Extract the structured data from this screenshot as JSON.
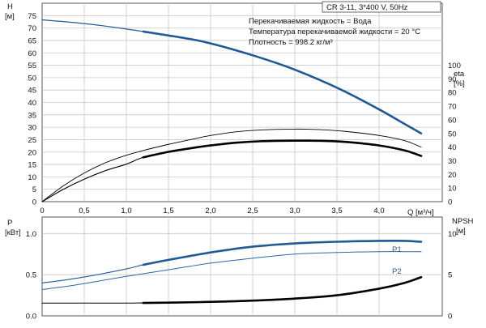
{
  "header": {
    "model_label": "CR 3-11, 3*400 V, 50Hz",
    "fluid_lines": [
      "Перекачиваемая жидкость = Вода",
      "Температура перекачиваемой жидкости = 20 °C",
      "Плотность = 998.2 кг/м³"
    ]
  },
  "colors": {
    "head_curve": "#1f5a96",
    "p1_curve": "#1f5a96",
    "p2_curve": "#2a68a8",
    "efficiency_curve": "#000000",
    "npsh_curve": "#000000",
    "grid": "#c8c8c8"
  },
  "chart_data": [
    {
      "type": "line",
      "x_axis": {
        "label": "Q [м³/ч]",
        "range": [
          0,
          4.75
        ],
        "ticks": [
          "0",
          "0,5",
          "1,0",
          "1,5",
          "2,0",
          "2,5",
          "3,0",
          "3,5",
          "4,0"
        ],
        "tick_values": [
          0,
          0.5,
          1.0,
          1.5,
          2.0,
          2.5,
          3.0,
          3.5,
          4.0
        ]
      },
      "y_axis_left": {
        "label_lines": [
          "H",
          "[м]"
        ],
        "range": [
          0,
          80
        ],
        "ticks": [
          "0",
          "5",
          "10",
          "15",
          "20",
          "25",
          "30",
          "35",
          "40",
          "45",
          "50",
          "55",
          "60",
          "65",
          "70",
          "75"
        ],
        "tick_values": [
          0,
          5,
          10,
          15,
          20,
          25,
          30,
          35,
          40,
          45,
          50,
          55,
          60,
          65,
          70,
          75
        ]
      },
      "y_axis_right": {
        "label_lines": [
          "eta",
          "[%]"
        ],
        "range": [
          0,
          145.45
        ],
        "ticks": [
          "0",
          "10",
          "20",
          "30",
          "40",
          "50",
          "60",
          "70",
          "80",
          "90",
          "100"
        ],
        "tick_values": [
          0,
          10,
          20,
          30,
          40,
          50,
          60,
          70,
          80,
          90,
          100
        ]
      },
      "grid": true,
      "series": [
        {
          "key": "head",
          "axis": "left",
          "x": [
            0,
            0.25,
            0.5,
            0.75,
            1.0,
            1.2,
            1.5,
            1.8,
            2.0,
            2.2,
            2.5,
            2.8,
            3.0,
            3.3,
            3.6,
            4.0,
            4.3,
            4.5
          ],
          "y": [
            73.3,
            72.6,
            71.8,
            70.8,
            69.6,
            68.6,
            67.0,
            65.3,
            63.8,
            62.0,
            59.0,
            55.7,
            53.2,
            49.0,
            44.3,
            37.2,
            31.4,
            27.5
          ],
          "bold_from_x": 1.2
        },
        {
          "key": "eta_thin",
          "axis": "right",
          "x": [
            0,
            0.25,
            0.5,
            0.75,
            1.0,
            1.2,
            1.5,
            1.8,
            2.0,
            2.3,
            2.6,
            3.0,
            3.3,
            3.6,
            4.0,
            4.3,
            4.5
          ],
          "y": [
            0,
            11.5,
            21.0,
            28.5,
            34.0,
            37.5,
            42.0,
            46.0,
            48.5,
            51.2,
            52.6,
            53.2,
            52.8,
            51.5,
            48.5,
            44.8,
            40.0
          ]
        },
        {
          "key": "eta_bold",
          "axis": "right",
          "x": [
            0,
            0.25,
            0.5,
            0.75,
            1.0,
            1.2,
            1.5,
            1.8,
            2.0,
            2.3,
            2.6,
            3.0,
            3.3,
            3.6,
            4.0,
            4.3,
            4.5
          ],
          "y": [
            0,
            9.0,
            16.5,
            22.7,
            27.5,
            32.5,
            36.5,
            39.5,
            41.2,
            43.2,
            44.3,
            44.7,
            44.6,
            43.8,
            41.2,
            37.6,
            33.5
          ],
          "bold_from_x": 1.2
        }
      ]
    },
    {
      "type": "line",
      "x_axis": {
        "range": [
          0,
          4.75
        ]
      },
      "y_axis_left": {
        "label_lines": [
          "P",
          "[кВт]"
        ],
        "range": [
          0,
          1.2
        ],
        "ticks": [
          "0.0",
          "0.5",
          "1.0"
        ],
        "tick_values": [
          0,
          0.5,
          1.0
        ]
      },
      "y_axis_right": {
        "label_lines": [
          "NPSH",
          "[м]"
        ],
        "range": [
          0,
          12
        ],
        "ticks": [
          "0",
          "5",
          "10"
        ],
        "tick_values": [
          0,
          5,
          10
        ]
      },
      "grid": true,
      "series": [
        {
          "name": "P1",
          "key": "p1",
          "axis": "left",
          "x": [
            0,
            0.3,
            0.6,
            1.0,
            1.2,
            1.5,
            2.0,
            2.5,
            3.0,
            3.5,
            4.0,
            4.3,
            4.5
          ],
          "y": [
            0.4,
            0.44,
            0.49,
            0.57,
            0.62,
            0.68,
            0.77,
            0.84,
            0.88,
            0.9,
            0.91,
            0.91,
            0.9
          ],
          "bold_from_x": 1.2
        },
        {
          "name": "P2",
          "key": "p2",
          "axis": "left",
          "x": [
            0,
            0.3,
            0.6,
            1.0,
            1.5,
            2.0,
            2.5,
            3.0,
            3.5,
            4.0,
            4.3,
            4.5
          ],
          "y": [
            0.32,
            0.36,
            0.41,
            0.48,
            0.56,
            0.64,
            0.7,
            0.75,
            0.77,
            0.78,
            0.78,
            0.78
          ]
        },
        {
          "key": "npsh",
          "axis": "right",
          "x": [
            0,
            0.5,
            1.0,
            1.2,
            1.5,
            2.0,
            2.5,
            3.0,
            3.5,
            4.0,
            4.3,
            4.5
          ],
          "y": [
            1.55,
            1.55,
            1.55,
            1.57,
            1.6,
            1.7,
            1.85,
            2.1,
            2.5,
            3.3,
            4.0,
            4.7
          ],
          "bold_from_x": 1.2
        }
      ]
    }
  ]
}
